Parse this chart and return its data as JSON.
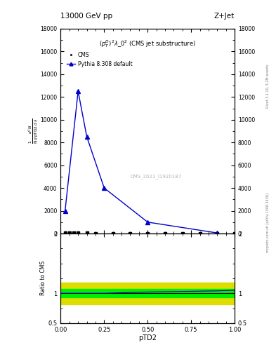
{
  "title_top": "13000 GeV pp",
  "title_right": "Z+Jet",
  "plot_title": "$(p_T^D)^2\\lambda\\_0^2$ (CMS jet substructure)",
  "xlabel": "pTD2",
  "ylabel_main": "1/N d^2N/d pTD2 d lambda",
  "ylabel_ratio": "Ratio to CMS",
  "watermark": "CMS_2021_I1920187",
  "rivet_text": "Rivet 3.1.10, 3.2M events",
  "arxiv_text": "mcplots.cern.ch [arXiv:1306.3436]",
  "cms_x": [
    0.025,
    0.05,
    0.075,
    0.1,
    0.15,
    0.2,
    0.3,
    0.4,
    0.5,
    0.6,
    0.7,
    0.8,
    0.9,
    1.0
  ],
  "cms_y": [
    50,
    80,
    70,
    60,
    50,
    30,
    20,
    10,
    5,
    3,
    2,
    1,
    0.5,
    0.1
  ],
  "pythia_x": [
    0.025,
    0.1,
    0.15,
    0.25,
    0.5,
    0.9
  ],
  "pythia_y": [
    2000,
    12500,
    8500,
    4000,
    1000,
    50
  ],
  "ratio_band_yellow_low": 0.82,
  "ratio_band_yellow_high": 1.18,
  "ratio_band_green_low": 0.93,
  "ratio_band_green_high": 1.07,
  "ratio_line": 1.0,
  "ratio_pythia_x": [
    0.0,
    0.025,
    0.1,
    0.15,
    0.25,
    0.5,
    0.9,
    1.0
  ],
  "ratio_pythia_y": [
    1.0,
    1.0,
    1.0,
    1.0,
    1.0,
    1.02,
    1.04,
    1.05
  ],
  "xlim": [
    0.0,
    1.0
  ],
  "main_ylim_max": 18000,
  "main_yticks": [
    0,
    2000,
    4000,
    6000,
    8000,
    10000,
    12000,
    14000,
    16000,
    18000
  ],
  "ratio_ylim": [
    0.5,
    2.0
  ],
  "ratio_yticks": [
    0.5,
    1.0,
    2.0
  ],
  "color_cms": "black",
  "color_pythia": "#0000cc",
  "color_green_band": "#00ee00",
  "color_yellow_band": "#dddd00",
  "bg_color": "white"
}
